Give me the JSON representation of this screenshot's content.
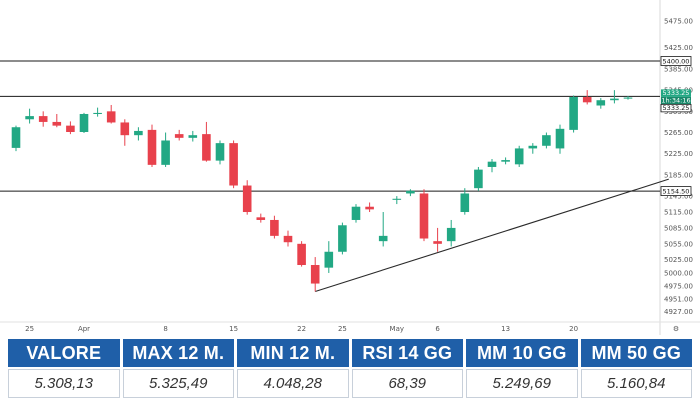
{
  "chart_data": {
    "type": "candlestick",
    "y_ticks": [
      4927,
      4951,
      4975,
      5000,
      5025,
      5055,
      5085,
      5115,
      5145,
      5185,
      5225,
      5265,
      5305,
      5345,
      5385,
      5425,
      5475
    ],
    "ylim": [
      4915,
      5500
    ],
    "x_ticks": [
      {
        "label": "25",
        "index": 1
      },
      {
        "label": "Apr",
        "index": 5
      },
      {
        "label": "8",
        "index": 11
      },
      {
        "label": "15",
        "index": 16
      },
      {
        "label": "22",
        "index": 21
      },
      {
        "label": "25",
        "index": 24
      },
      {
        "label": "May",
        "index": 28
      },
      {
        "label": "6",
        "index": 31
      },
      {
        "label": "13",
        "index": 36
      },
      {
        "label": "20",
        "index": 41
      }
    ],
    "up_color": "#22a884",
    "down_color": "#e8414c",
    "candles": [
      {
        "o": 5236,
        "h": 5278,
        "l": 5230,
        "c": 5275
      },
      {
        "o": 5290,
        "h": 5310,
        "l": 5282,
        "c": 5296
      },
      {
        "o": 5296,
        "h": 5305,
        "l": 5276,
        "c": 5285
      },
      {
        "o": 5285,
        "h": 5300,
        "l": 5275,
        "c": 5278
      },
      {
        "o": 5278,
        "h": 5286,
        "l": 5262,
        "c": 5266
      },
      {
        "o": 5266,
        "h": 5302,
        "l": 5264,
        "c": 5300
      },
      {
        "o": 5300,
        "h": 5312,
        "l": 5295,
        "c": 5302
      },
      {
        "o": 5305,
        "h": 5317,
        "l": 5282,
        "c": 5284
      },
      {
        "o": 5284,
        "h": 5290,
        "l": 5240,
        "c": 5260
      },
      {
        "o": 5260,
        "h": 5275,
        "l": 5250,
        "c": 5268
      },
      {
        "o": 5270,
        "h": 5280,
        "l": 5200,
        "c": 5204
      },
      {
        "o": 5204,
        "h": 5265,
        "l": 5200,
        "c": 5250
      },
      {
        "o": 5262,
        "h": 5270,
        "l": 5250,
        "c": 5255
      },
      {
        "o": 5255,
        "h": 5268,
        "l": 5248,
        "c": 5260
      },
      {
        "o": 5262,
        "h": 5285,
        "l": 5210,
        "c": 5212
      },
      {
        "o": 5212,
        "h": 5250,
        "l": 5205,
        "c": 5245
      },
      {
        "o": 5245,
        "h": 5250,
        "l": 5160,
        "c": 5165
      },
      {
        "o": 5165,
        "h": 5175,
        "l": 5110,
        "c": 5115
      },
      {
        "o": 5105,
        "h": 5112,
        "l": 5095,
        "c": 5100
      },
      {
        "o": 5100,
        "h": 5108,
        "l": 5065,
        "c": 5070
      },
      {
        "o": 5070,
        "h": 5080,
        "l": 5050,
        "c": 5058
      },
      {
        "o": 5055,
        "h": 5060,
        "l": 5012,
        "c": 5015
      },
      {
        "o": 5015,
        "h": 5030,
        "l": 4965,
        "c": 4980
      },
      {
        "o": 5010,
        "h": 5060,
        "l": 5000,
        "c": 5040
      },
      {
        "o": 5040,
        "h": 5095,
        "l": 5035,
        "c": 5090
      },
      {
        "o": 5100,
        "h": 5130,
        "l": 5095,
        "c": 5125
      },
      {
        "o": 5125,
        "h": 5133,
        "l": 5115,
        "c": 5120
      },
      {
        "o": 5060,
        "h": 5115,
        "l": 5050,
        "c": 5070
      },
      {
        "o": 5138,
        "h": 5145,
        "l": 5130,
        "c": 5140
      },
      {
        "o": 5150,
        "h": 5158,
        "l": 5145,
        "c": 5155
      },
      {
        "o": 5150,
        "h": 5158,
        "l": 5060,
        "c": 5065
      },
      {
        "o": 5060,
        "h": 5085,
        "l": 5040,
        "c": 5055
      },
      {
        "o": 5060,
        "h": 5100,
        "l": 5050,
        "c": 5085
      },
      {
        "o": 5115,
        "h": 5160,
        "l": 5110,
        "c": 5150
      },
      {
        "o": 5160,
        "h": 5200,
        "l": 5155,
        "c": 5195
      },
      {
        "o": 5200,
        "h": 5215,
        "l": 5190,
        "c": 5210
      },
      {
        "o": 5210,
        "h": 5218,
        "l": 5205,
        "c": 5213
      },
      {
        "o": 5205,
        "h": 5240,
        "l": 5200,
        "c": 5235
      },
      {
        "o": 5235,
        "h": 5245,
        "l": 5225,
        "c": 5240
      },
      {
        "o": 5240,
        "h": 5265,
        "l": 5235,
        "c": 5260
      },
      {
        "o": 5235,
        "h": 5280,
        "l": 5225,
        "c": 5272
      },
      {
        "o": 5270,
        "h": 5335,
        "l": 5265,
        "c": 5332
      },
      {
        "o": 5332,
        "h": 5345,
        "l": 5318,
        "c": 5322
      },
      {
        "o": 5316,
        "h": 5330,
        "l": 5310,
        "c": 5326
      },
      {
        "o": 5326,
        "h": 5345,
        "l": 5320,
        "c": 5329
      },
      {
        "o": 5329,
        "h": 5334,
        "l": 5327,
        "c": 5331
      }
    ],
    "levels": [
      {
        "value": 5400,
        "label": "5400.00"
      },
      {
        "value": 5333.25,
        "label": "5333.25"
      },
      {
        "value": 5154.5,
        "label": "5154.50"
      }
    ],
    "price_tags": [
      {
        "label": "5333.25"
      },
      {
        "label": "1h:34:16"
      },
      {
        "label": "5333.25"
      }
    ],
    "trendline": {
      "start": {
        "index": 22,
        "value": 4965
      },
      "end": {
        "index": 48,
        "value": 5177
      }
    }
  },
  "stats": {
    "headers": [
      "VALORE",
      "MAX 12 M.",
      "MIN 12 M.",
      "RSI 14 GG",
      "MM 10 GG",
      "MM 50 GG"
    ],
    "values": [
      "5.308,13",
      "5.325,49",
      "4.048,28",
      "68,39",
      "5.249,69",
      "5.160,84"
    ]
  }
}
